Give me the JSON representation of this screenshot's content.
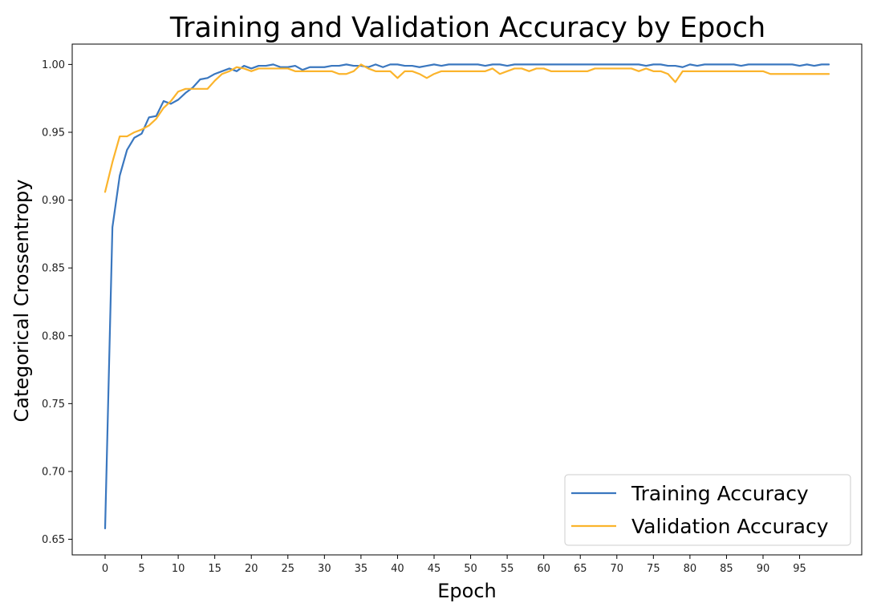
{
  "chart_data": {
    "type": "line",
    "title": "Training and Validation Accuracy by Epoch",
    "xlabel": "Epoch",
    "ylabel": "Categorical Crossentropy",
    "xlim": [
      -4.5,
      103.5
    ],
    "ylim": [
      0.6385,
      1.015
    ],
    "xticks": [
      0,
      5,
      10,
      15,
      20,
      25,
      30,
      35,
      40,
      45,
      50,
      55,
      60,
      65,
      70,
      75,
      80,
      85,
      90,
      95
    ],
    "xtick_labels": [
      "0",
      "5",
      "10",
      "15",
      "20",
      "25",
      "30",
      "35",
      "40",
      "45",
      "50",
      "55",
      "60",
      "65",
      "70",
      "75",
      "80",
      "85",
      "90",
      "95"
    ],
    "yticks": [
      0.65,
      0.7,
      0.75,
      0.8,
      0.85,
      0.9,
      0.95,
      1.0
    ],
    "ytick_labels": [
      "0.65",
      "0.70",
      "0.75",
      "0.80",
      "0.85",
      "0.90",
      "0.95",
      "1.00"
    ],
    "grid": false,
    "legend_position": "lower-right",
    "series": [
      {
        "name": "Training Accuracy",
        "color": "#3a77bf",
        "x": [
          0,
          1,
          2,
          3,
          4,
          5,
          6,
          7,
          8,
          9,
          10,
          11,
          12,
          13,
          14,
          15,
          16,
          17,
          18,
          19,
          20,
          21,
          22,
          23,
          24,
          25,
          26,
          27,
          28,
          29,
          30,
          31,
          32,
          33,
          34,
          35,
          36,
          37,
          38,
          39,
          40,
          41,
          42,
          43,
          44,
          45,
          46,
          47,
          48,
          49,
          50,
          51,
          52,
          53,
          54,
          55,
          56,
          57,
          58,
          59,
          60,
          61,
          62,
          63,
          64,
          65,
          66,
          67,
          68,
          69,
          70,
          71,
          72,
          73,
          74,
          75,
          76,
          77,
          78,
          79,
          80,
          81,
          82,
          83,
          84,
          85,
          86,
          87,
          88,
          89,
          90,
          91,
          92,
          93,
          94,
          95,
          96,
          97,
          98,
          99
        ],
        "values": [
          0.658,
          0.88,
          0.918,
          0.937,
          0.946,
          0.949,
          0.961,
          0.962,
          0.973,
          0.971,
          0.974,
          0.979,
          0.983,
          0.989,
          0.99,
          0.993,
          0.995,
          0.997,
          0.995,
          0.999,
          0.997,
          0.999,
          0.999,
          1.0,
          0.998,
          0.998,
          0.999,
          0.996,
          0.998,
          0.998,
          0.998,
          0.999,
          0.999,
          1.0,
          0.999,
          0.999,
          0.998,
          1.0,
          0.998,
          1.0,
          1.0,
          0.999,
          0.999,
          0.998,
          0.999,
          1.0,
          0.999,
          1.0,
          1.0,
          1.0,
          1.0,
          1.0,
          0.999,
          1.0,
          1.0,
          0.999,
          1.0,
          1.0,
          1.0,
          1.0,
          1.0,
          1.0,
          1.0,
          1.0,
          1.0,
          1.0,
          1.0,
          1.0,
          1.0,
          1.0,
          1.0,
          1.0,
          1.0,
          1.0,
          0.999,
          1.0,
          1.0,
          0.999,
          0.999,
          0.998,
          1.0,
          0.999,
          1.0,
          1.0,
          1.0,
          1.0,
          1.0,
          0.999,
          1.0,
          1.0,
          1.0,
          1.0,
          1.0,
          1.0,
          1.0,
          0.999,
          1.0,
          0.999,
          1.0,
          1.0
        ]
      },
      {
        "name": "Validation Accuracy",
        "color": "#fbb42c",
        "x": [
          0,
          1,
          2,
          3,
          4,
          5,
          6,
          7,
          8,
          9,
          10,
          11,
          12,
          13,
          14,
          15,
          16,
          17,
          18,
          19,
          20,
          21,
          22,
          23,
          24,
          25,
          26,
          27,
          28,
          29,
          30,
          31,
          32,
          33,
          34,
          35,
          36,
          37,
          38,
          39,
          40,
          41,
          42,
          43,
          44,
          45,
          46,
          47,
          48,
          49,
          50,
          51,
          52,
          53,
          54,
          55,
          56,
          57,
          58,
          59,
          60,
          61,
          62,
          63,
          64,
          65,
          66,
          67,
          68,
          69,
          70,
          71,
          72,
          73,
          74,
          75,
          76,
          77,
          78,
          79,
          80,
          81,
          82,
          83,
          84,
          85,
          86,
          87,
          88,
          89,
          90,
          91,
          92,
          93,
          94,
          95,
          96,
          97,
          98,
          99
        ],
        "values": [
          0.906,
          0.928,
          0.947,
          0.947,
          0.95,
          0.952,
          0.955,
          0.96,
          0.968,
          0.973,
          0.98,
          0.982,
          0.982,
          0.982,
          0.982,
          0.988,
          0.993,
          0.995,
          0.998,
          0.997,
          0.995,
          0.997,
          0.997,
          0.997,
          0.997,
          0.997,
          0.995,
          0.995,
          0.995,
          0.995,
          0.995,
          0.995,
          0.993,
          0.993,
          0.995,
          1.0,
          0.997,
          0.995,
          0.995,
          0.995,
          0.99,
          0.995,
          0.995,
          0.993,
          0.99,
          0.993,
          0.995,
          0.995,
          0.995,
          0.995,
          0.995,
          0.995,
          0.995,
          0.997,
          0.993,
          0.995,
          0.997,
          0.997,
          0.995,
          0.997,
          0.997,
          0.995,
          0.995,
          0.995,
          0.995,
          0.995,
          0.995,
          0.997,
          0.997,
          0.997,
          0.997,
          0.997,
          0.997,
          0.995,
          0.997,
          0.995,
          0.995,
          0.993,
          0.987,
          0.995,
          0.995,
          0.995,
          0.995,
          0.995,
          0.995,
          0.995,
          0.995,
          0.995,
          0.995,
          0.995,
          0.995,
          0.993,
          0.993,
          0.993,
          0.993,
          0.993,
          0.993,
          0.993,
          0.993,
          0.993
        ]
      }
    ]
  }
}
